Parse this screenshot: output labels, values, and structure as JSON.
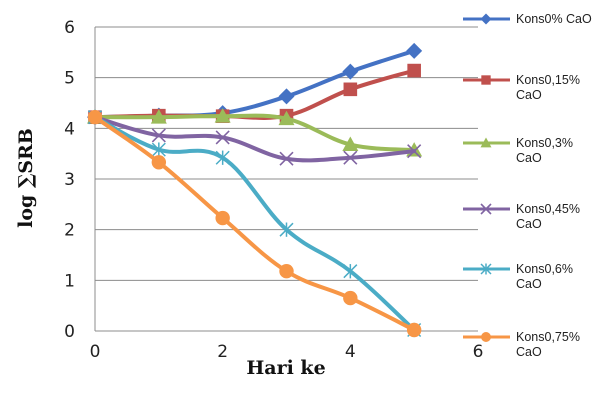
{
  "chart_data": {
    "type": "line",
    "xlabel": "Hari ke",
    "ylabel": "log ∑SRB",
    "xlim": [
      0,
      6
    ],
    "ylim": [
      0,
      6
    ],
    "xticks": [
      0,
      2,
      4,
      6
    ],
    "yticks": [
      0,
      1,
      2,
      3,
      4,
      5,
      6
    ],
    "grid": "horizontal",
    "legend_position": "right",
    "x": [
      0,
      1,
      2,
      3,
      4,
      5
    ],
    "series": [
      {
        "name": "Kons0% CaO",
        "name_lines": [
          "Kons0% CaO"
        ],
        "color": "#4472C4",
        "marker": "diamond",
        "values": [
          4.22,
          4.25,
          4.3,
          4.63,
          5.12,
          5.53
        ]
      },
      {
        "name": "Kons0,15% CaO",
        "name_lines": [
          "Kons0,15%",
          "CaO"
        ],
        "color": "#C0504D",
        "marker": "square",
        "values": [
          4.22,
          4.25,
          4.24,
          4.25,
          4.77,
          5.14
        ]
      },
      {
        "name": "Kons0,3% CaO",
        "name_lines": [
          "Kons0,3%",
          "CaO"
        ],
        "color": "#9BBB59",
        "marker": "triangle",
        "values": [
          4.22,
          4.22,
          4.24,
          4.19,
          3.68,
          3.57
        ]
      },
      {
        "name": "Kons0,45% CaO",
        "name_lines": [
          "Kons0,45%",
          "CaO"
        ],
        "color": "#8064A2",
        "marker": "x",
        "values": [
          4.22,
          3.86,
          3.82,
          3.4,
          3.42,
          3.55
        ]
      },
      {
        "name": "Kons0,6% CaO",
        "name_lines": [
          "Kons0,6%",
          "CaO"
        ],
        "color": "#4BACC6",
        "marker": "star",
        "values": [
          4.22,
          3.58,
          3.42,
          2.0,
          1.18,
          0.02
        ]
      },
      {
        "name": "Kons0,75% CaO",
        "name_lines": [
          "Kons0,75%",
          "CaO"
        ],
        "color": "#F79646",
        "marker": "circle",
        "values": [
          4.22,
          3.33,
          2.23,
          1.18,
          0.65,
          0.02
        ]
      }
    ]
  }
}
